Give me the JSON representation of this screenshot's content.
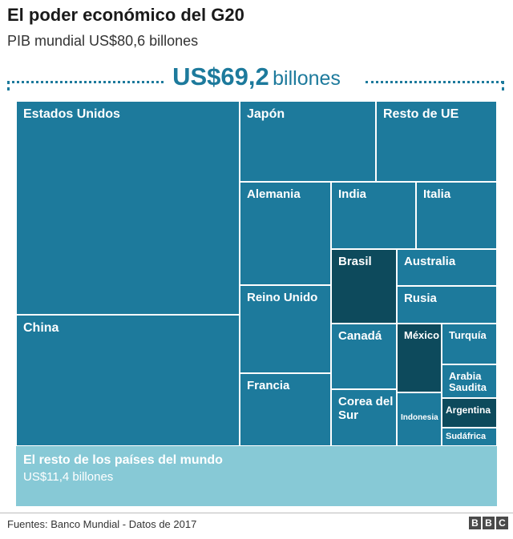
{
  "header": {
    "title": "El poder económico del G20",
    "subtitle": "PIB mundial US$80,6 billones",
    "g20_value": "US$69,2",
    "g20_unit": "billones"
  },
  "chart_data": {
    "type": "treemap",
    "title": "El poder económico del G20",
    "subtitle": "PIB mundial US$80,6 billones",
    "total_label": "US$69,2 billones",
    "tiles": [
      {
        "label": "Estados Unidos",
        "tone": "mid"
      },
      {
        "label": "China",
        "tone": "mid"
      },
      {
        "label": "Japón",
        "tone": "mid"
      },
      {
        "label": "Resto de UE",
        "tone": "mid"
      },
      {
        "label": "Alemania",
        "tone": "mid"
      },
      {
        "label": "India",
        "tone": "mid"
      },
      {
        "label": "Italia",
        "tone": "mid"
      },
      {
        "label": "Brasil",
        "tone": "dark"
      },
      {
        "label": "Australia",
        "tone": "mid"
      },
      {
        "label": "Reino Unido",
        "tone": "mid"
      },
      {
        "label": "Rusia",
        "tone": "mid"
      },
      {
        "label": "Canadá",
        "tone": "mid"
      },
      {
        "label": "México",
        "tone": "dark"
      },
      {
        "label": "Turquía",
        "tone": "mid"
      },
      {
        "label": "Francia",
        "tone": "mid"
      },
      {
        "label": "Arabia Saudita",
        "tone": "mid"
      },
      {
        "label": "Corea del Sur",
        "tone": "mid"
      },
      {
        "label": "Indonesia",
        "tone": "mid"
      },
      {
        "label": "Argentina",
        "tone": "dark"
      },
      {
        "label": "Sudáfrica",
        "tone": "mid"
      }
    ],
    "rest_of_world": {
      "label": "El resto de los países del mundo",
      "value_label": "US$11,4 billones"
    },
    "colors": {
      "mid": "#1d7a9c",
      "dark": "#0d4a5c",
      "light": "#87c9d6"
    }
  },
  "footer": {
    "source": "Fuentes: Banco Mundial - Datos de 2017",
    "logo": [
      "B",
      "B",
      "C"
    ]
  }
}
